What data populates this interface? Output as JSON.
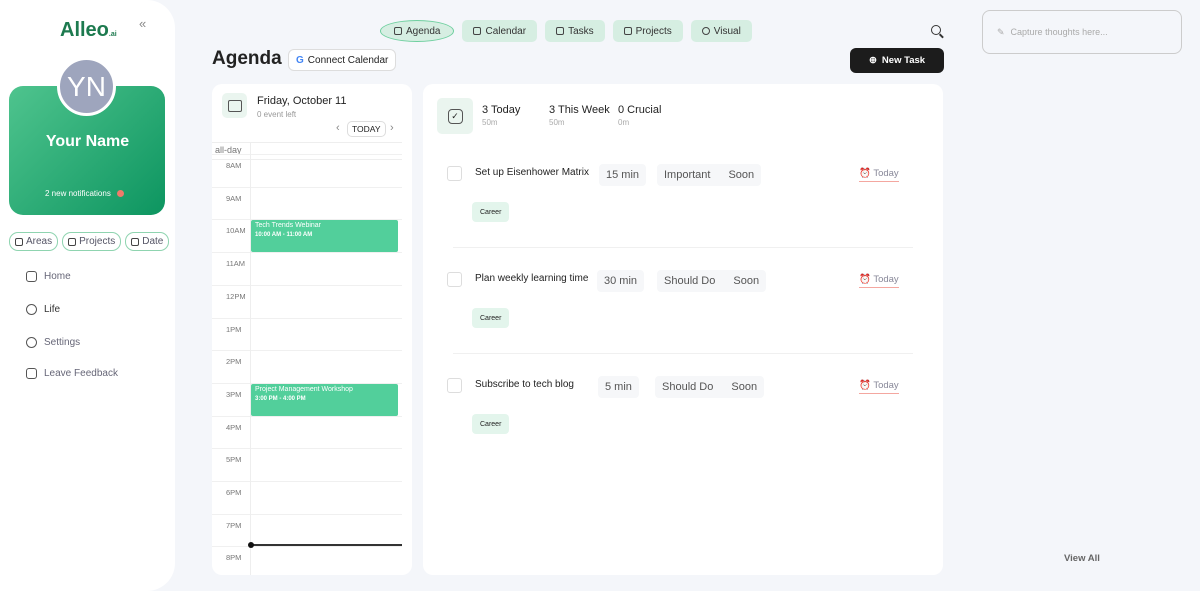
{
  "app": {
    "logo": "Alleo",
    "logo_suffix": ".ai",
    "collapse": "«"
  },
  "profile": {
    "initials": "YN",
    "name": "Your Name",
    "notifications": "2 new notifications"
  },
  "filters": [
    "Areas",
    "Projects",
    "Date"
  ],
  "nav": [
    {
      "label": "Home",
      "icon": "home-icon"
    },
    {
      "label": "Life",
      "icon": "target-icon"
    },
    {
      "label": "Settings",
      "icon": "gear-icon"
    },
    {
      "label": "Leave Feedback",
      "icon": "feedback-icon"
    }
  ],
  "tabs": [
    {
      "label": "Agenda",
      "active": true
    },
    {
      "label": "Calendar"
    },
    {
      "label": "Tasks"
    },
    {
      "label": "Projects"
    },
    {
      "label": "Visual"
    }
  ],
  "header": {
    "title": "Agenda",
    "connect": "Connect Calendar",
    "new_task": "New Task"
  },
  "calendar": {
    "date": "Friday, October 11",
    "events_left": "0 event left",
    "today": "TODAY",
    "all_day": "all-day",
    "hours": [
      "8AM",
      "9AM",
      "10AM",
      "11AM",
      "12PM",
      "1PM",
      "2PM",
      "3PM",
      "4PM",
      "5PM",
      "6PM",
      "7PM",
      "8PM"
    ],
    "events": [
      {
        "title": "Tech Trends Webinar",
        "time": "10:00 AM - 11:00 AM",
        "start": 10
      },
      {
        "title": "Project Management Workshop",
        "time": "3:00 PM - 4:00 PM",
        "start": 15
      }
    ]
  },
  "stats": [
    {
      "label": "3 Today",
      "sub": "50m"
    },
    {
      "label": "3 This Week",
      "sub": "50m"
    },
    {
      "label": "0 Crucial",
      "sub": "0m"
    }
  ],
  "tasks": [
    {
      "name": "Set up Eisenhower Matrix",
      "duration": "15 min",
      "priority": "Important",
      "timing": "Soon",
      "due": "Today",
      "tag": "Career"
    },
    {
      "name": "Plan weekly learning time",
      "duration": "30 min",
      "priority": "Should Do",
      "timing": "Soon",
      "due": "Today",
      "tag": "Career"
    },
    {
      "name": "Subscribe to tech blog",
      "duration": "5 min",
      "priority": "Should Do",
      "timing": "Soon",
      "due": "Today",
      "tag": "Career"
    }
  ],
  "capture": {
    "placeholder": "Capture thoughts here..."
  },
  "view_all": "View All"
}
